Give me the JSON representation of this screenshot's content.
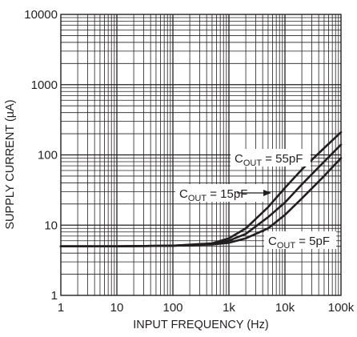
{
  "chart_data": {
    "type": "line",
    "x_scale": "log",
    "y_scale": "log",
    "xlim": [
      1,
      100000
    ],
    "ylim": [
      1,
      10000
    ],
    "xlabel": "INPUT FREQUENCY (Hz)",
    "ylabel": "SUPPLY CURRENT (µA)",
    "x_ticks": [
      {
        "value": 1,
        "label": "1"
      },
      {
        "value": 10,
        "label": "10"
      },
      {
        "value": 100,
        "label": "100"
      },
      {
        "value": 1000,
        "label": "1k"
      },
      {
        "value": 10000,
        "label": "10k"
      },
      {
        "value": 100000,
        "label": "100k"
      }
    ],
    "y_ticks": [
      {
        "value": 1,
        "label": "1"
      },
      {
        "value": 10,
        "label": "10"
      },
      {
        "value": 100,
        "label": "100"
      },
      {
        "value": 1000,
        "label": "1000"
      },
      {
        "value": 10000,
        "label": "10000"
      }
    ],
    "grid": true,
    "line_color": "#231f20",
    "series": [
      {
        "name": "COUT = 55pF",
        "x": [
          1,
          10,
          100,
          500,
          1000,
          2000,
          5000,
          10000,
          20000,
          50000,
          100000
        ],
        "y": [
          5,
          5,
          5.1,
          5.5,
          6.5,
          9,
          18,
          34,
          62,
          125,
          210
        ]
      },
      {
        "name": "COUT = 15pF",
        "x": [
          1,
          10,
          100,
          500,
          1000,
          2000,
          5000,
          10000,
          20000,
          50000,
          100000
        ],
        "y": [
          5,
          5,
          5.1,
          5.4,
          6,
          7.5,
          13,
          21,
          38,
          80,
          140
        ]
      },
      {
        "name": "COUT = 5pF",
        "x": [
          1,
          10,
          100,
          500,
          1000,
          2000,
          5000,
          10000,
          20000,
          50000,
          100000
        ],
        "y": [
          5,
          5,
          5.1,
          5.3,
          5.6,
          6.5,
          9,
          14,
          24,
          50,
          90
        ]
      }
    ],
    "annotations": [
      {
        "series": 0,
        "main": "C",
        "sub": "OUT",
        "rest": " = 55pF"
      },
      {
        "series": 1,
        "main": "C",
        "sub": "OUT",
        "rest": " = 15pF"
      },
      {
        "series": 2,
        "main": "C",
        "sub": "OUT",
        "rest": " = 5pF"
      }
    ]
  }
}
